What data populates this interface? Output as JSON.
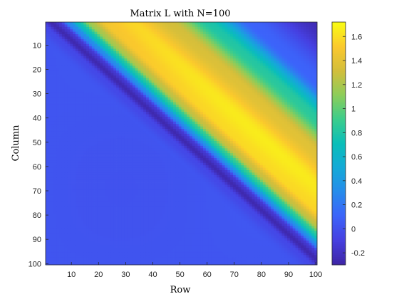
{
  "chart_data": {
    "type": "heatmap",
    "title": "Matrix L with N=100",
    "xlabel": "Row",
    "ylabel": "Column",
    "n": 100,
    "x_ticks": [
      10,
      20,
      30,
      40,
      50,
      60,
      70,
      80,
      90,
      100
    ],
    "y_ticks": [
      10,
      20,
      30,
      40,
      50,
      60,
      70,
      80,
      90,
      100
    ],
    "xlim": [
      0.5,
      100.5
    ],
    "ylim": [
      0.5,
      100.5
    ],
    "y_direction": "reverse",
    "colorbar": {
      "clim": [
        -0.3,
        1.72
      ],
      "ticks": [
        -0.2,
        0,
        0.2,
        0.4,
        0.6,
        0.8,
        1,
        1.2,
        1.4,
        1.6
      ],
      "tick_labels": [
        "-0.2",
        "0",
        "0.2",
        "0.4",
        "0.6",
        "0.8",
        "1",
        "1.2",
        "1.4",
        "1.6"
      ],
      "location": "right",
      "colormap": "parula"
    },
    "value_profile": {
      "description_of_field": "value depends mainly on d = row - column (row index i on x axis, column index j on y axis)",
      "anchors_d": [
        -100,
        -8,
        -2,
        2,
        5,
        8,
        12,
        16,
        22,
        32,
        46,
        60,
        75,
        100
      ],
      "anchors_value": [
        0.02,
        0.02,
        -0.05,
        -0.28,
        -0.15,
        0.3,
        0.8,
        1.25,
        1.55,
        1.62,
        1.35,
        0.8,
        0.1,
        -0.25
      ],
      "lower_region_base": 0.02
    }
  }
}
